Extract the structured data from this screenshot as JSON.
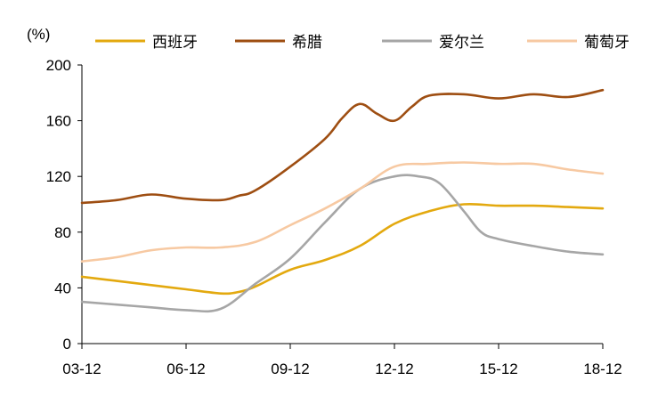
{
  "chart_data": {
    "type": "line",
    "title": "",
    "xlabel": "",
    "ylabel": "(%)",
    "ylim": [
      0,
      200
    ],
    "yticks": [
      "0",
      "40",
      "80",
      "120",
      "160",
      "200"
    ],
    "xticks": [
      "03-12",
      "06-12",
      "09-12",
      "12-12",
      "15-12",
      "18-12"
    ],
    "xticks_years": [
      2003,
      2006,
      2009,
      2012,
      2015,
      2018
    ],
    "xlim": [
      2003,
      2018
    ],
    "grid": false,
    "legend_position": "top",
    "series": [
      {
        "name": "西班牙",
        "color": "#E3A90F",
        "x": [
          2003,
          2004,
          2005,
          2006,
          2007,
          2007.5,
          2008,
          2009,
          2010,
          2011,
          2012,
          2013,
          2014,
          2015,
          2016,
          2017,
          2018
        ],
        "values": [
          48,
          45,
          42,
          39,
          36,
          37,
          41,
          53,
          60,
          70,
          86,
          95,
          100,
          99,
          99,
          98,
          97
        ]
      },
      {
        "name": "希腊",
        "color": "#9E4E12",
        "x": [
          2003,
          2004,
          2005,
          2006,
          2007,
          2007.5,
          2008,
          2009,
          2010,
          2010.5,
          2011,
          2011.5,
          2012,
          2012.5,
          2013,
          2014,
          2015,
          2016,
          2017,
          2018
        ],
        "values": [
          101,
          103,
          107,
          104,
          103,
          106,
          110,
          127,
          147,
          162,
          172,
          165,
          160,
          170,
          178,
          179,
          176,
          179,
          177,
          182
        ]
      },
      {
        "name": "爱尔兰",
        "color": "#A6A6A6",
        "x": [
          2003,
          2004,
          2005,
          2006,
          2007,
          2008,
          2009,
          2010,
          2011,
          2012,
          2012.7,
          2013.3,
          2014,
          2014.5,
          2015,
          2016,
          2017,
          2018
        ],
        "values": [
          30,
          28,
          26,
          24,
          25,
          43,
          61,
          87,
          111,
          120,
          120,
          115,
          95,
          80,
          75,
          70,
          66,
          64
        ]
      },
      {
        "name": "葡萄牙",
        "color": "#F7C9A2",
        "x": [
          2003,
          2004,
          2005,
          2006,
          2007,
          2008,
          2009,
          2010,
          2011,
          2012,
          2013,
          2014,
          2015,
          2016,
          2017,
          2018
        ],
        "values": [
          59,
          62,
          67,
          69,
          69,
          73,
          85,
          97,
          111,
          127,
          129,
          130,
          129,
          129,
          125,
          122
        ]
      }
    ]
  }
}
